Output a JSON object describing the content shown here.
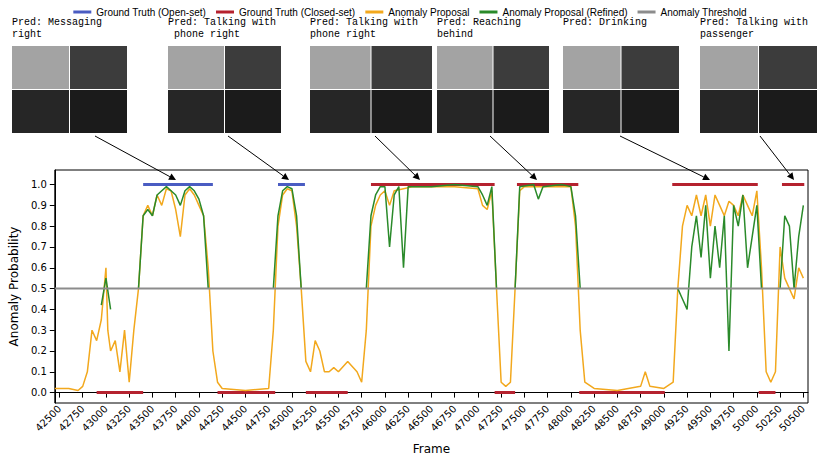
{
  "chart_data": {
    "type": "line",
    "x_label": "Frame",
    "y_label": "Anomaly Probability",
    "annotations": [
      "Pred: Messaging right",
      "Pred: Talking with phone right",
      "Pred: Talking with phone right",
      "Pred: Reaching behind",
      "Pred: Drinking",
      "Pred: Talking with passenger"
    ],
    "xlim": [
      42450,
      50550
    ],
    "xticks": [
      42500,
      42750,
      43000,
      43250,
      43500,
      43750,
      44000,
      44250,
      44500,
      44750,
      45000,
      45250,
      45500,
      45750,
      46000,
      46250,
      46500,
      46750,
      47000,
      47250,
      47500,
      47750,
      48000,
      48250,
      48500,
      48750,
      49000,
      49250,
      49500,
      49750,
      50000,
      50250,
      50500
    ],
    "ylim": [
      -0.05,
      1.07
    ],
    "yticks": [
      {
        "value": 0,
        "label": "0.0"
      },
      0.1,
      0.2,
      0.3,
      0.4,
      0.5,
      0.6,
      0.7,
      0.8,
      0.9,
      {
        "value": 1,
        "label": "1.0"
      }
    ],
    "grid": false,
    "legend": "top",
    "series": [
      {
        "name": "Ground Truth (Open-set)",
        "color": "#4a5cc2",
        "x": [
          43400,
          44150,
          44500,
          44850,
          45140
        ],
        "values": [
          1,
          1,
          null,
          1,
          1
        ]
      },
      {
        "name": "Ground Truth (Closed-set)",
        "color": "#b5222f",
        "x": [
          42900,
          43400,
          43800,
          44200,
          44820,
          45000,
          45150,
          45600,
          45700,
          45850,
          47180,
          47180,
          47180,
          47400,
          47400,
          47420,
          48080,
          48080,
          48090,
          49010,
          49050,
          49090,
          50010,
          50010,
          50020,
          50200,
          50230,
          50270,
          50510
        ],
        "values": [
          0,
          0,
          null,
          0,
          0,
          null,
          0,
          0,
          null,
          1,
          1,
          null,
          0,
          0,
          null,
          1,
          1,
          null,
          0,
          0,
          null,
          1,
          1,
          null,
          0,
          0,
          null,
          1,
          1
        ]
      },
      {
        "name": "Anomaly Proposal",
        "color": "#f2a81d",
        "x": [
          42450,
          42600,
          42700,
          42750,
          42800,
          42850,
          42900,
          42950,
          43000,
          43020,
          43050,
          43100,
          43150,
          43200,
          43250,
          43300,
          43350,
          43400,
          43450,
          43500,
          43550,
          43600,
          43650,
          43700,
          43750,
          43800,
          43850,
          43900,
          43950,
          44000,
          44050,
          44100,
          44150,
          44200,
          44250,
          44500,
          44750,
          44800,
          44850,
          44900,
          44950,
          45000,
          45050,
          45100,
          45150,
          45200,
          45250,
          45300,
          45350,
          45400,
          45450,
          45500,
          45600,
          45700,
          45750,
          45800,
          45850,
          45900,
          45950,
          46000,
          46050,
          46100,
          46200,
          46300,
          46500,
          46750,
          47000,
          47050,
          47100,
          47150,
          47200,
          47250,
          47300,
          47350,
          47400,
          47450,
          47500,
          47750,
          48000,
          48050,
          48100,
          48150,
          48250,
          48500,
          48750,
          48800,
          48850,
          49000,
          49100,
          49150,
          49200,
          49250,
          49300,
          49350,
          49400,
          49450,
          49500,
          49550,
          49600,
          49650,
          49700,
          49750,
          49800,
          49850,
          49900,
          49950,
          50000,
          50050,
          50100,
          50150,
          50200,
          50250,
          50300,
          50350,
          50400,
          50450,
          50500
        ],
        "values": [
          0.02,
          0.02,
          0.01,
          0.03,
          0.1,
          0.3,
          0.25,
          0.35,
          0.6,
          0.3,
          0.2,
          0.25,
          0.1,
          0.3,
          0.05,
          0.3,
          0.5,
          0.85,
          0.9,
          0.85,
          0.95,
          0.9,
          0.98,
          0.97,
          0.88,
          0.75,
          0.95,
          0.98,
          0.95,
          0.9,
          0.85,
          0.6,
          0.2,
          0.05,
          0.02,
          0.01,
          0.02,
          0.3,
          0.8,
          0.95,
          0.98,
          0.97,
          0.8,
          0.5,
          0.15,
          0.1,
          0.25,
          0.2,
          0.1,
          0.1,
          0.12,
          0.1,
          0.15,
          0.1,
          0.05,
          0.3,
          0.8,
          0.9,
          0.95,
          0.97,
          0.9,
          0.97,
          0.98,
          0.99,
          0.99,
          0.99,
          0.98,
          0.9,
          0.88,
          0.97,
          0.5,
          0.05,
          0.03,
          0.05,
          0.5,
          0.97,
          0.99,
          0.99,
          0.99,
          0.8,
          0.3,
          0.05,
          0.02,
          0.01,
          0.03,
          0.1,
          0.03,
          0.02,
          0.05,
          0.5,
          0.8,
          0.9,
          0.85,
          0.95,
          0.85,
          0.95,
          0.8,
          0.95,
          0.9,
          0.85,
          0.92,
          0.9,
          0.85,
          0.95,
          0.9,
          0.85,
          0.97,
          0.6,
          0.1,
          0.05,
          0.1,
          0.7,
          0.55,
          0.5,
          0.45,
          0.6,
          0.55
        ]
      },
      {
        "name": "Anomaly Proposal (Refined)",
        "color": "#2a8a2a",
        "x": [
          42950,
          43000,
          43050,
          43100,
          43350,
          43400,
          43450,
          43500,
          43550,
          43600,
          43650,
          43700,
          43750,
          43800,
          43850,
          43900,
          43950,
          44000,
          44050,
          44100,
          44400,
          44800,
          44850,
          44900,
          44950,
          45000,
          45050,
          45100,
          45400,
          45800,
          45850,
          45900,
          45950,
          46000,
          46050,
          46100,
          46150,
          46200,
          46250,
          46500,
          46750,
          47000,
          47050,
          47100,
          47150,
          47200,
          47300,
          47400,
          47450,
          47600,
          47650,
          47700,
          47900,
          48000,
          48050,
          48100,
          48600,
          49150,
          49200,
          49250,
          49300,
          49350,
          49400,
          49450,
          49500,
          49550,
          49600,
          49650,
          49700,
          49750,
          49800,
          49850,
          49900,
          49950,
          50000,
          50050,
          50150,
          50250,
          50300,
          50350,
          50400,
          50450,
          50500
        ],
        "values": [
          0.42,
          0.55,
          0.4,
          null,
          0.5,
          0.85,
          0.88,
          0.85,
          0.95,
          0.97,
          0.99,
          0.97,
          0.95,
          0.9,
          0.97,
          0.99,
          0.97,
          0.93,
          0.85,
          0.5,
          null,
          0.5,
          0.85,
          0.97,
          0.99,
          0.98,
          0.85,
          0.5,
          null,
          0.5,
          0.85,
          0.95,
          0.99,
          0.99,
          0.7,
          0.95,
          0.99,
          0.6,
          0.99,
          0.99,
          1,
          0.99,
          0.95,
          0.9,
          0.99,
          0.5,
          null,
          0.5,
          0.99,
          1,
          0.93,
          0.99,
          1,
          0.99,
          0.85,
          0.5,
          null,
          0.5,
          0.45,
          0.4,
          0.7,
          0.85,
          0.65,
          0.9,
          0.55,
          0.8,
          0.6,
          0.85,
          0.2,
          0.9,
          0.8,
          0.95,
          0.6,
          0.75,
          0.9,
          0.5,
          null,
          0.5,
          0.85,
          0.8,
          0.5,
          0.75,
          0.9
        ]
      },
      {
        "name": "Anomaly Threshold",
        "color": "#8c8c8c",
        "x": [
          42450,
          50550
        ],
        "values": [
          0.5,
          0.5
        ]
      }
    ]
  }
}
